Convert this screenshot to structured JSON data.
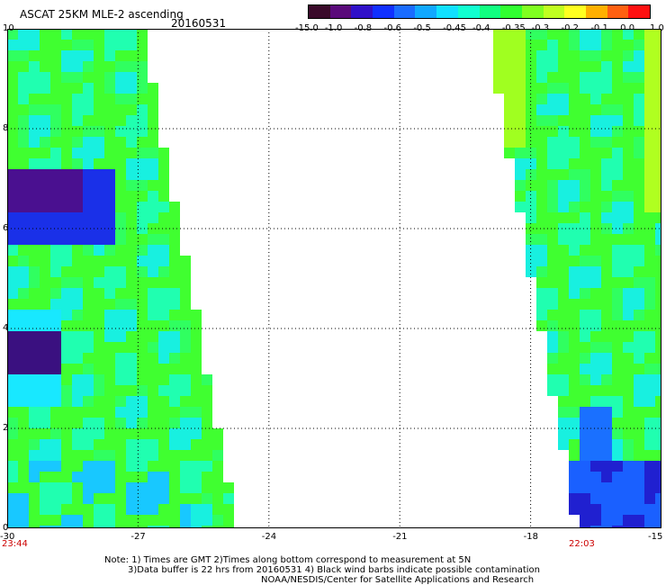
{
  "header": {
    "title": "ASCAT 25KM MLE-2 ascending",
    "date": "20160531"
  },
  "colorbar": {
    "colors": [
      "#3a0a2a",
      "#5a0a7a",
      "#3010c8",
      "#1030ff",
      "#1a6cff",
      "#10a8ff",
      "#10e0ff",
      "#10ffd0",
      "#10ff80",
      "#30ff30",
      "#80ff20",
      "#c0ff20",
      "#ffff20",
      "#ffb000",
      "#ff6010",
      "#ff1010"
    ],
    "labels": [
      "-15.0",
      "-1.0",
      "-0.8",
      "-0.6",
      "-0.5",
      "-0.45",
      "-0.4",
      "-0.35",
      "-0.3",
      "-0.2",
      "-0.1",
      "0.0",
      "1.0"
    ]
  },
  "axes": {
    "x_ticks": [
      "-30",
      "-27",
      "-24",
      "-21",
      "-18",
      "-15"
    ],
    "y_ticks": [
      "0",
      "2",
      "4",
      "6",
      "8",
      "10"
    ],
    "x_range": [
      -30,
      -15
    ],
    "y_range": [
      0,
      10
    ],
    "grid": "dotted"
  },
  "times": {
    "left": "23:44",
    "right": "22:03"
  },
  "note": {
    "line1": "Note: 1) Times are GMT 2)Times along bottom correspond to measurement at 5N",
    "line2": "3)Data buffer is 22 hrs from 20160531 4) Black wind barbs indicate possible contamination",
    "line3": "NOAA/NESDIS/Center for Satellite Applications and Research"
  }
}
